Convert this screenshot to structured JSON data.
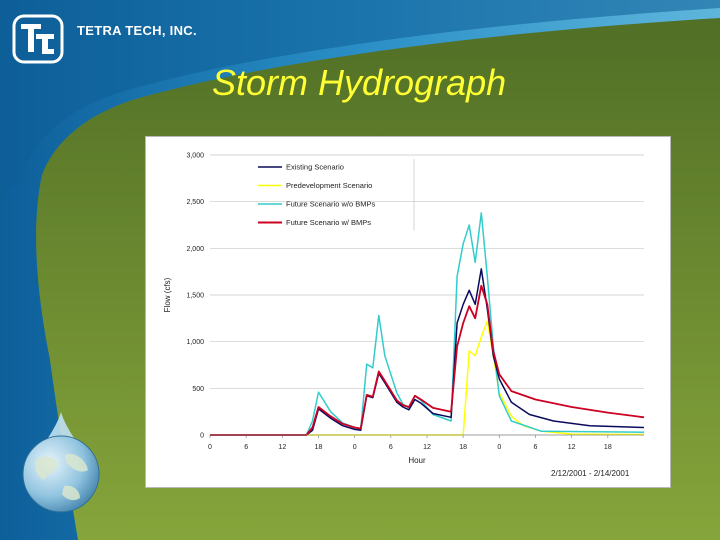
{
  "header": {
    "brand": "TETRA TECH, INC.",
    "slide_title": "Storm Hydrograph"
  },
  "icons": {
    "logo": "tetra-tech-logo-icon",
    "globe": "water-drop-globe-icon"
  },
  "colors": {
    "title": "#ffff33",
    "background_green": "#5b7a2c",
    "water_blue": "#1f7fb8"
  },
  "chart_data": {
    "type": "line",
    "title": "",
    "xlabel": "Hour",
    "ylabel": "Flow (cfs)",
    "ylim": [
      0,
      3000
    ],
    "yticks": [
      0,
      500,
      1000,
      1500,
      2000,
      2500,
      3000
    ],
    "ytick_labels": [
      "0",
      "500",
      "1,000",
      "1,500",
      "2,000",
      "2,500",
      "3,000"
    ],
    "xlim": [
      0,
      72
    ],
    "xtick_labels": [
      "0",
      "6",
      "12",
      "18",
      "0",
      "6",
      "12",
      "18",
      "0",
      "6",
      "12",
      "18"
    ],
    "date_range": "2/12/2001 - 2/14/2001",
    "legend": "top-left inside",
    "grid": "horizontal",
    "series": [
      {
        "name": "Existing Scenario",
        "color": "#0a0a5c",
        "points": [
          [
            0,
            0
          ],
          [
            16,
            0
          ],
          [
            17,
            50
          ],
          [
            18,
            280
          ],
          [
            20,
            180
          ],
          [
            22,
            100
          ],
          [
            24,
            60
          ],
          [
            25,
            50
          ],
          [
            26,
            420
          ],
          [
            27,
            400
          ],
          [
            28,
            660
          ],
          [
            29,
            560
          ],
          [
            31,
            350
          ],
          [
            32,
            300
          ],
          [
            33,
            270
          ],
          [
            34,
            380
          ],
          [
            35,
            340
          ],
          [
            37,
            230
          ],
          [
            40,
            190
          ],
          [
            41,
            1200
          ],
          [
            42,
            1400
          ],
          [
            43,
            1550
          ],
          [
            44,
            1400
          ],
          [
            45,
            1780
          ],
          [
            46,
            1350
          ],
          [
            47,
            850
          ],
          [
            48,
            600
          ],
          [
            50,
            350
          ],
          [
            53,
            220
          ],
          [
            57,
            150
          ],
          [
            63,
            100
          ],
          [
            72,
            80
          ]
        ]
      },
      {
        "name": "Predevelopment Scenario",
        "color": "#ffff00",
        "points": [
          [
            0,
            0
          ],
          [
            42,
            0
          ],
          [
            43,
            900
          ],
          [
            44,
            850
          ],
          [
            45,
            1050
          ],
          [
            46,
            1220
          ],
          [
            47,
            850
          ],
          [
            48,
            450
          ],
          [
            50,
            200
          ],
          [
            52,
            100
          ],
          [
            55,
            40
          ],
          [
            60,
            10
          ],
          [
            72,
            5
          ]
        ]
      },
      {
        "name": "Future Scenario w/o BMPs",
        "color": "#33cccc",
        "points": [
          [
            0,
            0
          ],
          [
            16,
            0
          ],
          [
            17,
            150
          ],
          [
            18,
            460
          ],
          [
            20,
            250
          ],
          [
            22,
            130
          ],
          [
            24,
            80
          ],
          [
            25,
            60
          ],
          [
            26,
            760
          ],
          [
            27,
            720
          ],
          [
            28,
            1280
          ],
          [
            29,
            850
          ],
          [
            31,
            450
          ],
          [
            32,
            330
          ],
          [
            33,
            290
          ],
          [
            34,
            420
          ],
          [
            35,
            370
          ],
          [
            37,
            220
          ],
          [
            40,
            150
          ],
          [
            41,
            1700
          ],
          [
            42,
            2050
          ],
          [
            43,
            2250
          ],
          [
            44,
            1850
          ],
          [
            45,
            2380
          ],
          [
            46,
            1700
          ],
          [
            47,
            950
          ],
          [
            48,
            420
          ],
          [
            50,
            150
          ],
          [
            55,
            40
          ],
          [
            72,
            30
          ]
        ]
      },
      {
        "name": "Future Scenario w/ BMPs",
        "color": "#cc0022",
        "points": [
          [
            0,
            0
          ],
          [
            16,
            0
          ],
          [
            17,
            80
          ],
          [
            18,
            300
          ],
          [
            20,
            200
          ],
          [
            22,
            120
          ],
          [
            24,
            80
          ],
          [
            25,
            70
          ],
          [
            26,
            430
          ],
          [
            27,
            410
          ],
          [
            28,
            680
          ],
          [
            29,
            580
          ],
          [
            31,
            370
          ],
          [
            32,
            320
          ],
          [
            33,
            300
          ],
          [
            34,
            420
          ],
          [
            35,
            380
          ],
          [
            37,
            290
          ],
          [
            40,
            250
          ],
          [
            41,
            950
          ],
          [
            42,
            1200
          ],
          [
            43,
            1380
          ],
          [
            44,
            1250
          ],
          [
            45,
            1600
          ],
          [
            46,
            1400
          ],
          [
            47,
            900
          ],
          [
            48,
            650
          ],
          [
            50,
            470
          ],
          [
            54,
            380
          ],
          [
            60,
            300
          ],
          [
            66,
            240
          ],
          [
            72,
            190
          ]
        ]
      }
    ]
  }
}
